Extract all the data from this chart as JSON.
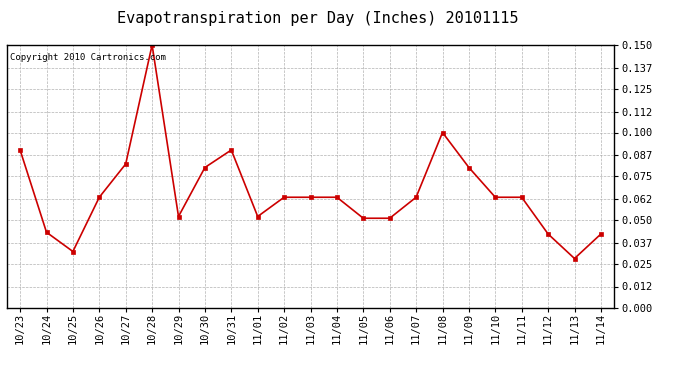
{
  "title": "Evapotranspiration per Day (Inches) 20101115",
  "copyright_text": "Copyright 2010 Cartronics.com",
  "categories": [
    "10/23",
    "10/24",
    "10/25",
    "10/26",
    "10/27",
    "10/28",
    "10/29",
    "10/30",
    "10/31",
    "11/01",
    "11/02",
    "11/03",
    "11/04",
    "11/05",
    "11/06",
    "11/07",
    "11/08",
    "11/09",
    "11/10",
    "11/11",
    "11/12",
    "11/13",
    "11/14"
  ],
  "values": [
    0.09,
    0.043,
    0.032,
    0.063,
    0.082,
    0.15,
    0.052,
    0.08,
    0.09,
    0.052,
    0.063,
    0.063,
    0.063,
    0.051,
    0.051,
    0.063,
    0.1,
    0.08,
    0.063,
    0.063,
    0.042,
    0.028,
    0.042
  ],
  "line_color": "#CC0000",
  "marker_color": "#CC0000",
  "background_color": "#FFFFFF",
  "plot_bg_color": "#FFFFFF",
  "grid_color": "#AAAAAA",
  "ylim": [
    0.0,
    0.15
  ],
  "yticks": [
    0.0,
    0.012,
    0.025,
    0.037,
    0.05,
    0.062,
    0.075,
    0.087,
    0.1,
    0.112,
    0.125,
    0.137,
    0.15
  ],
  "title_fontsize": 11,
  "copyright_fontsize": 6.5,
  "tick_fontsize": 7.5
}
